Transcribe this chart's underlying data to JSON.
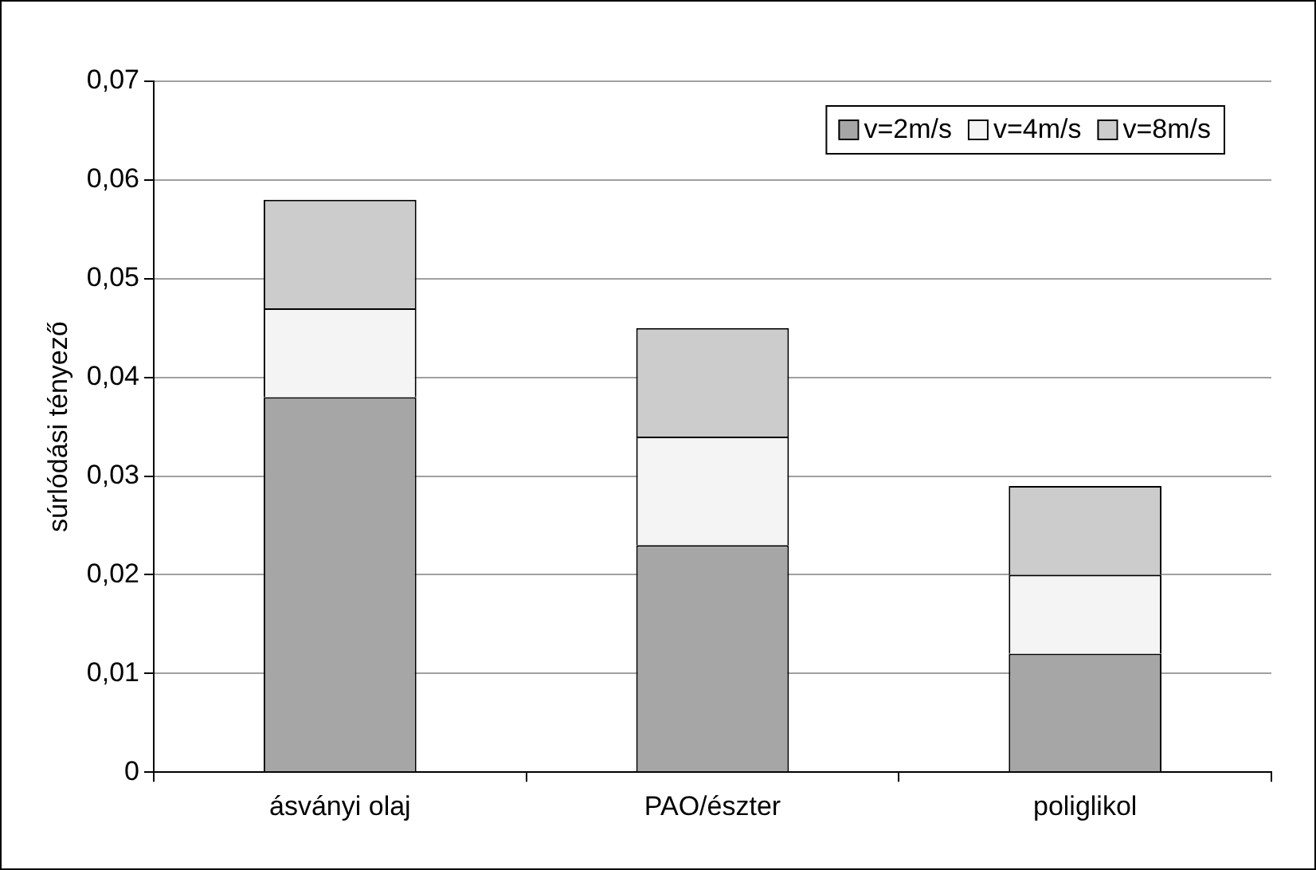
{
  "chart_data": {
    "type": "bar",
    "stacked": true,
    "ylabel": "súrlódási tényező",
    "categories": [
      "ásványi olaj",
      "PAO/észter",
      "poliglikol"
    ],
    "series": [
      {
        "name": "v=2m/s",
        "color": "#a6a6a6",
        "values": [
          0.038,
          0.023,
          0.012
        ]
      },
      {
        "name": "v=4m/s",
        "color": "#f4f4f4",
        "values": [
          0.009,
          0.011,
          0.008
        ]
      },
      {
        "name": "v=8m/s",
        "color": "#cccccc",
        "values": [
          0.011,
          0.011,
          0.009
        ]
      }
    ],
    "ylim": [
      0,
      0.07
    ],
    "yticks": [
      0,
      {
        "value": 0.01,
        "label": "0,01"
      },
      {
        "value": 0.02,
        "label": "0,02"
      },
      {
        "value": 0.03,
        "label": "0,03"
      },
      {
        "value": 0.04,
        "label": "0,04"
      },
      {
        "value": 0.05,
        "label": "0,05"
      },
      {
        "value": 0.06,
        "label": "0,06"
      },
      {
        "value": 0.07,
        "label": "0,07"
      }
    ],
    "grid": "y",
    "legend": "top right"
  }
}
